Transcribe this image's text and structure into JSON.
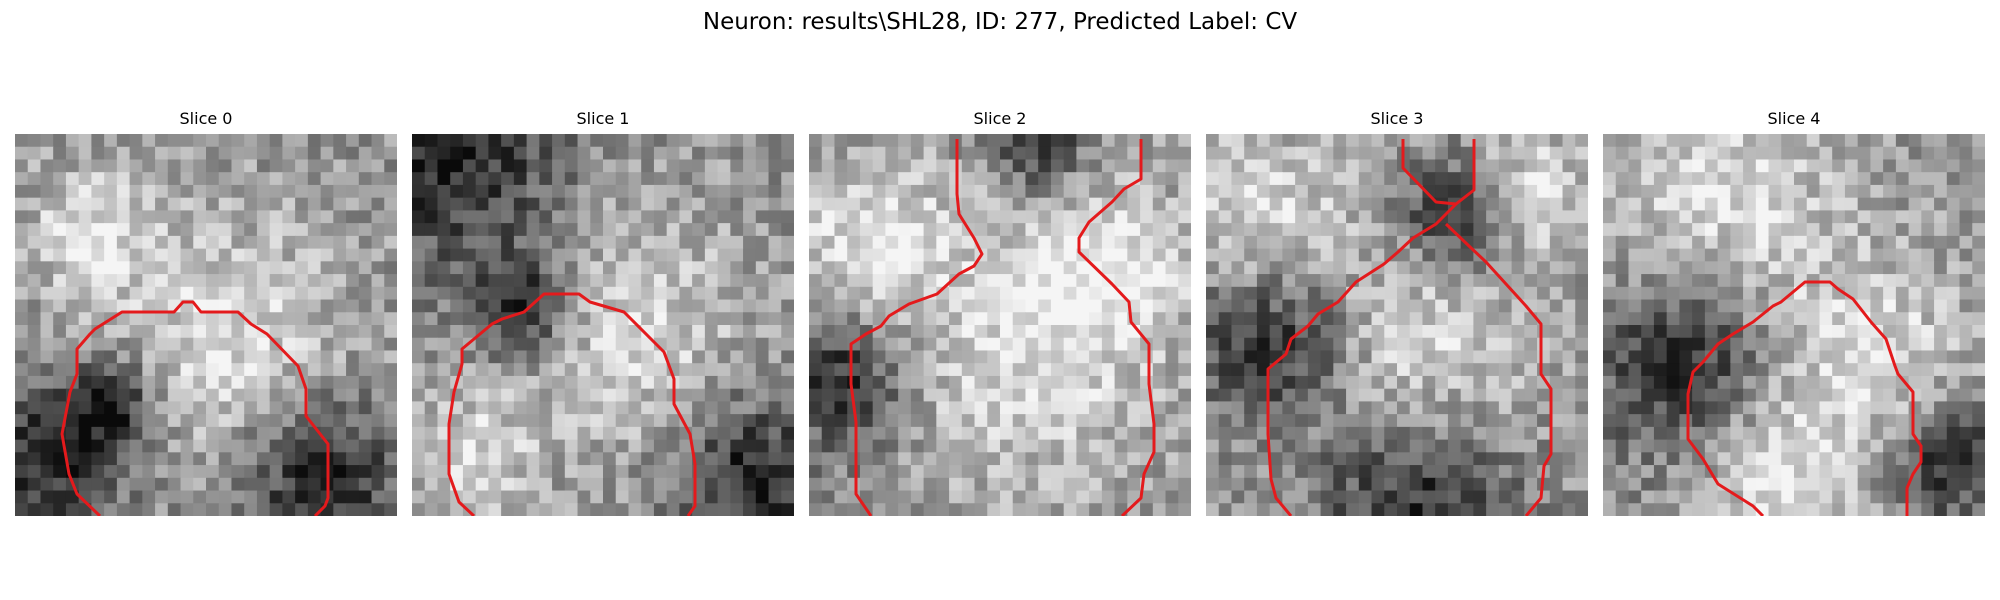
{
  "figure": {
    "title": "Neuron: results\\SHL28, ID: 277, Predicted Label: CV",
    "outline_color": "#e41a1c",
    "colormap": "grayscale",
    "panels": [
      {
        "title": "Slice 0",
        "seed": 11,
        "dark": [
          [
            0.1,
            0.85,
            0.2
          ],
          [
            0.8,
            0.9,
            0.22
          ],
          [
            0.25,
            0.7,
            0.12
          ]
        ],
        "light": [
          [
            0.55,
            0.55,
            0.3
          ],
          [
            0.2,
            0.25,
            0.15
          ]
        ]
      },
      {
        "title": "Slice 1",
        "seed": 23,
        "dark": [
          [
            0.1,
            0.05,
            0.3
          ],
          [
            0.3,
            0.45,
            0.14
          ],
          [
            0.9,
            0.9,
            0.2
          ]
        ],
        "light": [
          [
            0.55,
            0.5,
            0.28
          ],
          [
            0.15,
            0.85,
            0.15
          ]
        ]
      },
      {
        "title": "Slice 2",
        "seed": 37,
        "dark": [
          [
            0.08,
            0.65,
            0.18
          ],
          [
            0.6,
            0.02,
            0.12
          ]
        ],
        "light": [
          [
            0.55,
            0.55,
            0.35
          ],
          [
            0.15,
            0.25,
            0.18
          ],
          [
            0.8,
            0.35,
            0.18
          ]
        ]
      },
      {
        "title": "Slice 3",
        "seed": 41,
        "dark": [
          [
            0.18,
            0.55,
            0.2
          ],
          [
            0.65,
            0.22,
            0.14
          ],
          [
            0.55,
            0.95,
            0.25
          ]
        ],
        "light": [
          [
            0.55,
            0.6,
            0.28
          ],
          [
            0.15,
            0.2,
            0.2
          ],
          [
            0.85,
            0.15,
            0.15
          ]
        ]
      },
      {
        "title": "Slice 4",
        "seed": 53,
        "dark": [
          [
            0.2,
            0.6,
            0.22
          ],
          [
            0.9,
            0.85,
            0.15
          ]
        ],
        "light": [
          [
            0.3,
            0.15,
            0.3
          ],
          [
            0.7,
            0.6,
            0.25
          ],
          [
            0.45,
            0.9,
            0.18
          ]
        ]
      }
    ]
  }
}
